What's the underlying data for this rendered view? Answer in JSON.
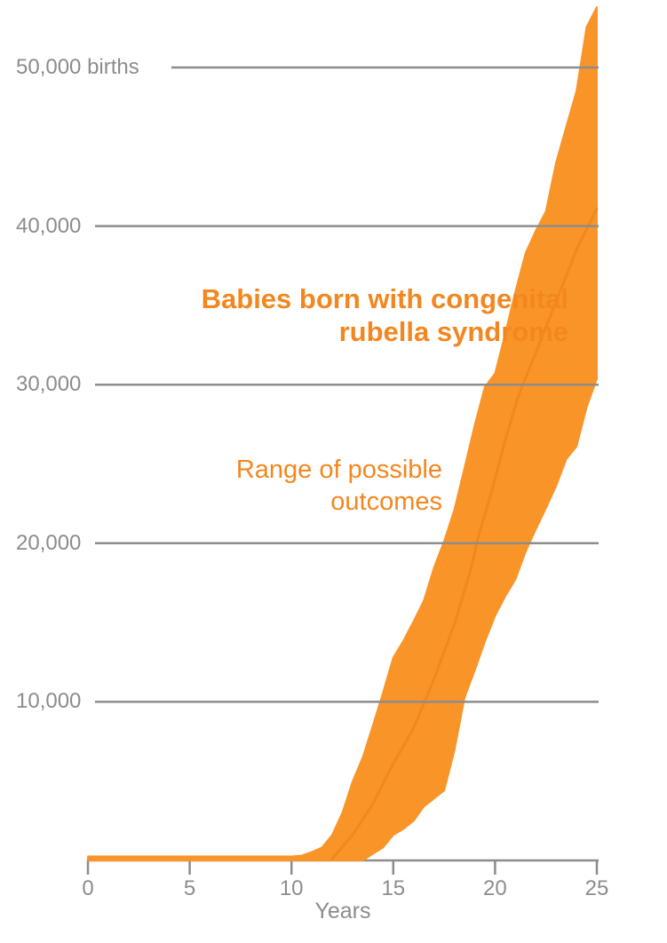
{
  "chart_data": {
    "type": "area",
    "description": "Range band chart of simulated outcomes over time",
    "xlabel": "Years",
    "xlim": [
      0,
      25
    ],
    "ylim": [
      0,
      54000
    ],
    "grid": true,
    "legend_position": "none",
    "x_ticks": [
      {
        "value": 0,
        "label": "0"
      },
      {
        "value": 5,
        "label": "5"
      },
      {
        "value": 10,
        "label": "10"
      },
      {
        "value": 15,
        "label": "15"
      },
      {
        "value": 20,
        "label": "20"
      },
      {
        "value": 25,
        "label": "25"
      }
    ],
    "y_ticks": [
      {
        "value": 50000,
        "label": "50,000 births"
      },
      {
        "value": 40000,
        "label": "40,000"
      },
      {
        "value": 30000,
        "label": "30,000"
      },
      {
        "value": 20000,
        "label": "20,000"
      },
      {
        "value": 10000,
        "label": "10,000"
      }
    ],
    "annotation": {
      "lines": [
        "Babies born with congenital",
        "rubella syndrome"
      ],
      "full_text": "Babies born with congenital rubella syndrome"
    },
    "range_label": {
      "lines": [
        "Range of possible",
        "outcomes"
      ],
      "full_text": "Range of possible outcomes"
    },
    "series": [
      {
        "name": "upper bound of range",
        "points": [
          [
            0,
            250
          ],
          [
            5,
            250
          ],
          [
            10,
            250
          ],
          [
            10.5,
            300
          ],
          [
            11,
            530
          ],
          [
            11.5,
            820
          ],
          [
            12,
            1600
          ],
          [
            12.5,
            3000
          ],
          [
            13,
            4970
          ],
          [
            13.5,
            6490
          ],
          [
            14,
            8510
          ],
          [
            14.5,
            10590
          ],
          [
            15,
            12780
          ],
          [
            15.5,
            13850
          ],
          [
            16,
            15080
          ],
          [
            16.5,
            16380
          ],
          [
            17,
            18450
          ],
          [
            17.5,
            20140
          ],
          [
            18,
            22110
          ],
          [
            18.5,
            24750
          ],
          [
            19,
            27440
          ],
          [
            19.5,
            29860
          ],
          [
            20,
            30700
          ],
          [
            20.5,
            33230
          ],
          [
            21,
            35870
          ],
          [
            21.5,
            38290
          ],
          [
            22,
            39690
          ],
          [
            22.5,
            40930
          ],
          [
            23,
            44020
          ],
          [
            23.5,
            46260
          ],
          [
            24,
            48510
          ],
          [
            24.5,
            52560
          ],
          [
            25,
            53800
          ]
        ]
      },
      {
        "name": "lower bound of range",
        "points": [
          [
            0,
            0
          ],
          [
            5,
            0
          ],
          [
            10,
            0
          ],
          [
            13.5,
            0
          ],
          [
            14,
            420
          ],
          [
            14.5,
            820
          ],
          [
            15,
            1600
          ],
          [
            15.5,
            1990
          ],
          [
            16,
            2500
          ],
          [
            16.5,
            3400
          ],
          [
            17,
            3900
          ],
          [
            17.5,
            4410
          ],
          [
            18,
            6940
          ],
          [
            18.5,
            10250
          ],
          [
            19,
            11990
          ],
          [
            19.5,
            13790
          ],
          [
            20,
            15420
          ],
          [
            20.5,
            16660
          ],
          [
            21,
            17720
          ],
          [
            21.5,
            19470
          ],
          [
            22,
            20870
          ],
          [
            22.5,
            22220
          ],
          [
            23,
            23620
          ],
          [
            23.5,
            25310
          ],
          [
            24,
            26100
          ],
          [
            24.5,
            28570
          ],
          [
            25,
            30370
          ]
        ]
      },
      {
        "name": "trajectory line inside band",
        "points": [
          [
            12,
            100
          ],
          [
            13,
            1600
          ],
          [
            14,
            3570
          ],
          [
            15,
            6100
          ],
          [
            16,
            8340
          ],
          [
            17,
            11430
          ],
          [
            18,
            14900
          ],
          [
            18.8,
            18290
          ],
          [
            19.2,
            20530
          ],
          [
            19.8,
            23120
          ],
          [
            20.5,
            26490
          ],
          [
            21.1,
            29130
          ],
          [
            22,
            32000
          ],
          [
            23,
            35250
          ],
          [
            24,
            38510
          ],
          [
            25,
            41100
          ]
        ]
      }
    ],
    "colors": {
      "band": "#F99429",
      "trajectory": "#E87D12",
      "annotation_text": "#F3871F",
      "axis_gray": "#8C8C8C"
    }
  }
}
